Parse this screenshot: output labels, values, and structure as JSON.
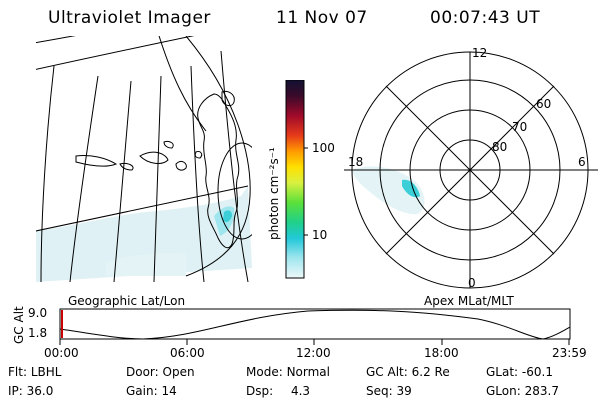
{
  "header": {
    "instrument": "Ultraviolet Imager",
    "date": "11 Nov 07",
    "time": "00:07:43 UT"
  },
  "geo_map": {
    "caption": "Geographic Lat/Lon"
  },
  "colorbar": {
    "unit_label": "photon cm⁻²s⁻¹",
    "ticks": [
      "100",
      "10"
    ],
    "colors": [
      "#111133",
      "#6a0a3a",
      "#b30a2a",
      "#e63a1a",
      "#ff8c00",
      "#ffd400",
      "#f5f53a",
      "#b8ee3a",
      "#3ce03a",
      "#1cd0a0",
      "#22c8d8",
      "#9fe6ee",
      "#e8f6f7"
    ]
  },
  "polar_plot": {
    "caption": "Apex MLat/MLT",
    "mlt_labels": [
      "12",
      "18",
      "6",
      "0"
    ],
    "mlat_labels": [
      "60",
      "70",
      "80"
    ]
  },
  "altitude_plot": {
    "ylabel": "GC Alt",
    "y_ticks": [
      "9.0",
      "1.8"
    ],
    "x_ticks": [
      "00:00",
      "06:00",
      "12:00",
      "18:00",
      "23:59"
    ]
  },
  "info": {
    "row1": [
      {
        "label": "Flt:",
        "value": "LBHL"
      },
      {
        "label": "Door:",
        "value": "Open"
      },
      {
        "label": "Mode:",
        "value": "Normal"
      },
      {
        "label": "GC Alt:",
        "value": "6.2 Re"
      },
      {
        "label": "GLat:",
        "value": "-60.1"
      }
    ],
    "row2": [
      {
        "label": "IP:",
        "value": "36.0"
      },
      {
        "label": "Gain:",
        "value": "14"
      },
      {
        "label": "Dsp:",
        "value": "4.3"
      },
      {
        "label": "Seq:",
        "value": "39"
      },
      {
        "label": "GLon:",
        "value": "283.7"
      }
    ]
  }
}
